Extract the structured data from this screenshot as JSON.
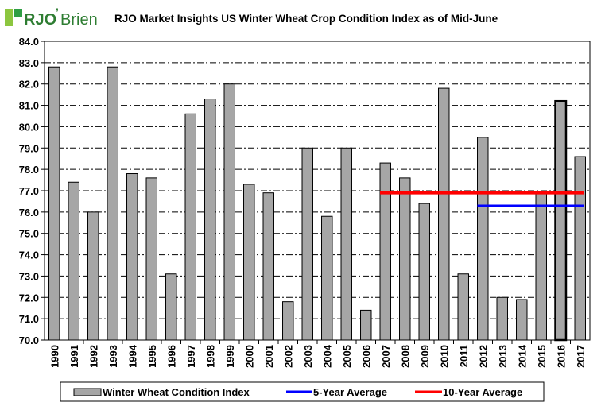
{
  "logo": {
    "brand": "RJO",
    "brand_suffix": "Brien",
    "apostrophe": "’"
  },
  "chart_data": {
    "type": "bar",
    "title": "RJO Market Insights US Winter Wheat Crop Condition Index as of Mid-June",
    "xlabel": "",
    "ylabel": "",
    "ylim": [
      70.0,
      84.0
    ],
    "ytick_step": 1.0,
    "yticks": [
      "70.0",
      "71.0",
      "72.0",
      "73.0",
      "74.0",
      "75.0",
      "76.0",
      "77.0",
      "78.0",
      "79.0",
      "80.0",
      "81.0",
      "82.0",
      "83.0",
      "84.0"
    ],
    "categories": [
      "1990",
      "1991",
      "1992",
      "1993",
      "1994",
      "1995",
      "1996",
      "1997",
      "1998",
      "1999",
      "2000",
      "2001",
      "2002",
      "2003",
      "2004",
      "2005",
      "2006",
      "2007",
      "2008",
      "2009",
      "2010",
      "2011",
      "2012",
      "2013",
      "2014",
      "2015",
      "2016",
      "2017"
    ],
    "series": [
      {
        "name": "Winter Wheat Condition Index",
        "values": [
          82.8,
          77.4,
          76.0,
          82.8,
          77.8,
          77.6,
          73.1,
          80.6,
          81.3,
          82.0,
          77.3,
          76.9,
          71.8,
          79.0,
          75.8,
          79.0,
          71.4,
          78.3,
          77.6,
          76.4,
          81.8,
          73.1,
          79.5,
          72.0,
          71.9,
          76.9,
          81.2,
          78.6
        ],
        "color": "#a6a6a6",
        "highlight_category": "2016"
      }
    ],
    "reference_lines": [
      {
        "name": "5-Year Average",
        "value": 76.3,
        "from": "2012",
        "to": "2017",
        "color": "#0000ff"
      },
      {
        "name": "10-Year Average",
        "value": 76.9,
        "from": "2007",
        "to": "2017",
        "color": "#ff0000"
      }
    ],
    "grid": true,
    "legend_position": "bottom"
  }
}
